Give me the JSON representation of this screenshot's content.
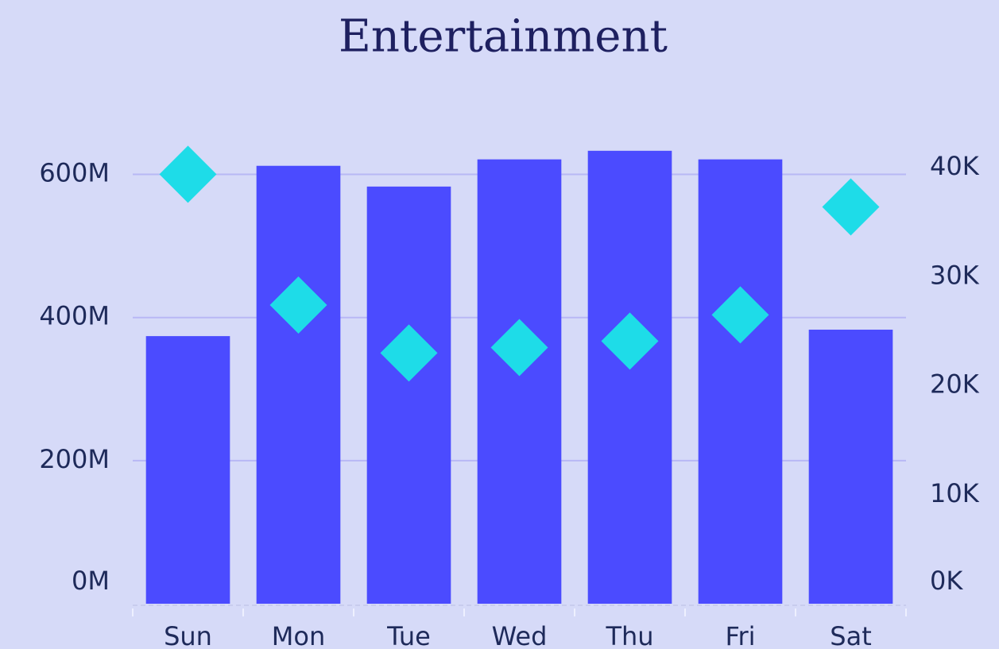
{
  "chart_data": {
    "type": "bar",
    "title": "Entertainment",
    "categories": [
      "Sun",
      "Mon",
      "Tue",
      "Wed",
      "Thu",
      "Fri",
      "Sat"
    ],
    "series": [
      {
        "type": "bar",
        "color": "#4b4bff",
        "values": [
          374000000,
          612000000,
          583000000,
          621000000,
          633000000,
          621000000,
          383000000
        ]
      },
      {
        "type": "scatter",
        "axis": "y2",
        "color": "#1edce8",
        "values": [
          39400,
          27400,
          23000,
          23500,
          24100,
          26500,
          36400
        ]
      }
    ],
    "ylim": [
      0,
      655000000
    ],
    "yticks": [
      {
        "value": 0,
        "label": "0M"
      },
      {
        "value": 200000000,
        "label": "200M"
      },
      {
        "value": 400000000,
        "label": "400M"
      },
      {
        "value": 600000000,
        "label": "600M"
      }
    ],
    "y2lim": [
      0,
      43000
    ],
    "y2ticks": [
      {
        "value": 0,
        "label": "0K"
      },
      {
        "value": 10000,
        "label": "10K"
      },
      {
        "value": 20000,
        "label": "20K"
      },
      {
        "value": 30000,
        "label": "30K"
      },
      {
        "value": 40000,
        "label": "40K"
      }
    ],
    "grid": true
  }
}
